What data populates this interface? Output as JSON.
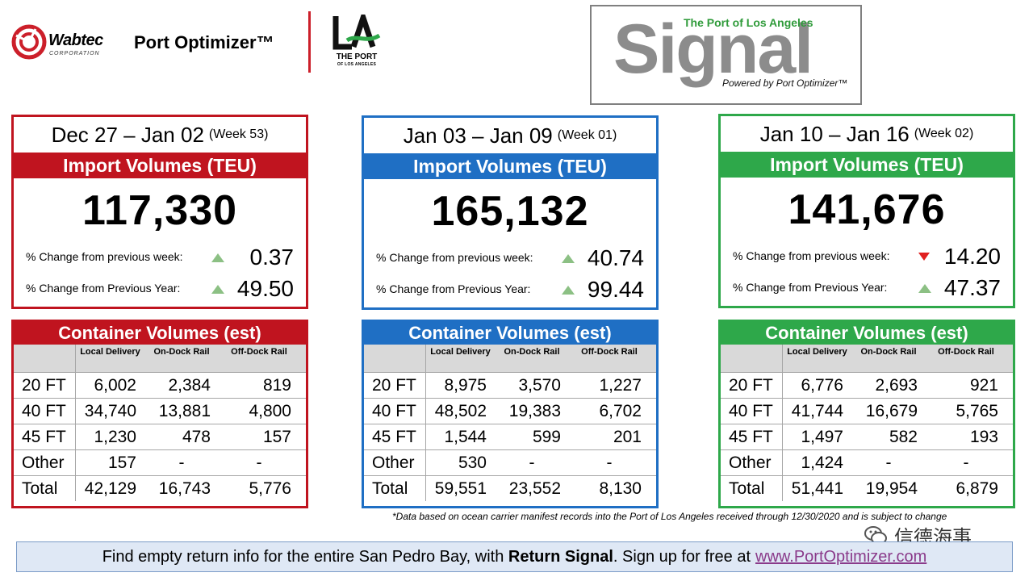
{
  "header": {
    "wabtec_name": "Wabtec",
    "wabtec_corp": "CORPORATION",
    "product": "Port Optimizer™",
    "la_mark": "LA",
    "la_port": "THE PORT",
    "la_sub": "OF LOS ANGELES",
    "signal_top": "The Port of Los Angeles",
    "signal_word": "Signal",
    "signal_powered": "Powered by Port Optimizer™"
  },
  "colors": {
    "red": "#c0141f",
    "blue": "#1f6fc4",
    "green": "#2ea84a"
  },
  "panels": [
    {
      "week_range": "Dec 27 – Jan 02",
      "week_no": "(Week 53)",
      "band": "Import Volumes (TEU)",
      "teu": "117,330",
      "wow_label": "% Change from previous week:",
      "wow_dir": "up",
      "wow": "0.37",
      "yoy_label": "% Change from Previous Year:",
      "yoy_dir": "up",
      "yoy": "49.50"
    },
    {
      "week_range": "Jan 03 – Jan 09",
      "week_no": "(Week 01)",
      "band": "Import Volumes (TEU)",
      "teu": "165,132",
      "wow_label": "% Change from previous week:",
      "wow_dir": "up",
      "wow": "40.74",
      "yoy_label": "% Change from Previous Year:",
      "yoy_dir": "up",
      "yoy": "99.44"
    },
    {
      "week_range": "Jan 10 – Jan 16",
      "week_no": "(Week 02)",
      "band": "Import Volumes (TEU)",
      "teu": "141,676",
      "wow_label": "% Change from previous week:",
      "wow_dir": "down",
      "wow": "14.20",
      "yoy_label": "% Change from Previous Year:",
      "yoy_dir": "up",
      "yoy": "47.37"
    }
  ],
  "tables": [
    {
      "title": "Container Volumes (est)",
      "columns": [
        "Local Delivery",
        "On-Dock Rail",
        "Off-Dock Rail"
      ],
      "rows": [
        {
          "label": "20 FT",
          "values": [
            "6,002",
            "2,384",
            "819"
          ]
        },
        {
          "label": "40 FT",
          "values": [
            "34,740",
            "13,881",
            "4,800"
          ]
        },
        {
          "label": "45 FT",
          "values": [
            "1,230",
            "478",
            "157"
          ]
        },
        {
          "label": "Other",
          "values": [
            "157",
            "-",
            "-"
          ]
        },
        {
          "label": "Total",
          "values": [
            "42,129",
            "16,743",
            "5,776"
          ]
        }
      ]
    },
    {
      "title": "Container Volumes (est)",
      "columns": [
        "Local Delivery",
        "On-Dock Rail",
        "Off-Dock Rail"
      ],
      "rows": [
        {
          "label": "20 FT",
          "values": [
            "8,975",
            "3,570",
            "1,227"
          ]
        },
        {
          "label": "40 FT",
          "values": [
            "48,502",
            "19,383",
            "6,702"
          ]
        },
        {
          "label": "45 FT",
          "values": [
            "1,544",
            "599",
            "201"
          ]
        },
        {
          "label": "Other",
          "values": [
            "530",
            "-",
            "-"
          ]
        },
        {
          "label": "Total",
          "values": [
            "59,551",
            "23,552",
            "8,130"
          ]
        }
      ]
    },
    {
      "title": "Container Volumes  (est)",
      "columns": [
        "Local Delivery",
        "On-Dock Rail",
        "Off-Dock Rail"
      ],
      "rows": [
        {
          "label": "20 FT",
          "values": [
            "6,776",
            "2,693",
            "921"
          ]
        },
        {
          "label": "40 FT",
          "values": [
            "41,744",
            "16,679",
            "5,765"
          ]
        },
        {
          "label": "45 FT",
          "values": [
            "1,497",
            "582",
            "193"
          ]
        },
        {
          "label": "Other",
          "values": [
            "1,424",
            "-",
            "-"
          ]
        },
        {
          "label": "Total",
          "values": [
            "51,441",
            "19,954",
            "6,879"
          ]
        }
      ]
    }
  ],
  "footnote": "*Data based on ocean carrier manifest records into the Port of Los Angeles received through 12/30/2020 and is subject to change",
  "watermark": "信德海事",
  "bottom": {
    "pre": "Find empty return info for the entire San Pedro Bay, with",
    "bold": "Return Signal",
    "mid": ". Sign up for free at",
    "link": "www.PortOptimizer.com"
  }
}
